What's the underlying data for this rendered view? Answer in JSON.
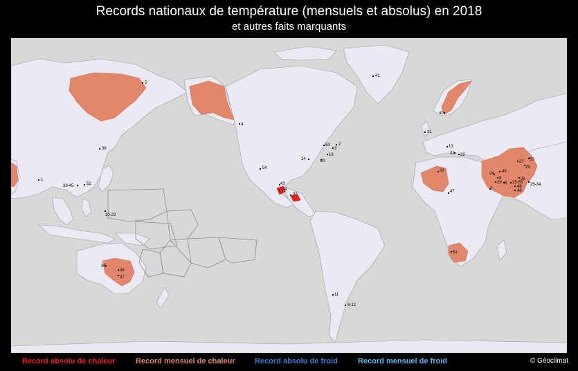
{
  "title": "Records nationaux de température (mensuels et absolus) en 2018",
  "subtitle": "et autres faits marquants",
  "colors": {
    "ocean": "#d8d8d8",
    "land": "#ebe9f1",
    "record_abs_heat": "#e8231e",
    "record_month_heat": "#e2876c",
    "record_abs_cold": "#3f7dd6",
    "record_month_cold": "#5db9f0"
  },
  "legend": {
    "abs_heat": "Record absolu de chaleur",
    "month_heat": "Record mensuel de chaleur",
    "abs_cold": "Record absolu de froid",
    "month_cold": "Record mensuel de froid"
  },
  "copyright": "© Géoclimat",
  "map_labels": [
    {
      "text": "41"
    },
    {
      "text": "5"
    },
    {
      "text": "4"
    },
    {
      "text": "40"
    },
    {
      "text": "31"
    },
    {
      "text": "38"
    },
    {
      "text": "1"
    },
    {
      "text": "39-45"
    },
    {
      "text": "52"
    },
    {
      "text": "10-23"
    },
    {
      "text": "54"
    },
    {
      "text": "43"
    },
    {
      "text": "44"
    },
    {
      "text": "42"
    },
    {
      "text": "14"
    },
    {
      "text": "53"
    },
    {
      "text": "2"
    },
    {
      "text": "3"
    },
    {
      "text": "16"
    },
    {
      "text": "20"
    },
    {
      "text": "13"
    },
    {
      "text": "33"
    },
    {
      "text": "32"
    },
    {
      "text": "30"
    },
    {
      "text": "47"
    },
    {
      "text": "24"
    },
    {
      "text": "49"
    },
    {
      "text": "9"
    },
    {
      "text": "28"
    },
    {
      "text": "8"
    },
    {
      "text": "25-55"
    },
    {
      "text": "48"
    },
    {
      "text": "46"
    },
    {
      "text": "7"
    },
    {
      "text": "27"
    },
    {
      "text": "29"
    },
    {
      "text": "50"
    },
    {
      "text": "26"
    },
    {
      "text": "26-34"
    },
    {
      "text": "51"
    },
    {
      "text": "35"
    },
    {
      "text": "36"
    },
    {
      "text": "37"
    },
    {
      "text": "11"
    },
    {
      "text": "6-12"
    }
  ]
}
